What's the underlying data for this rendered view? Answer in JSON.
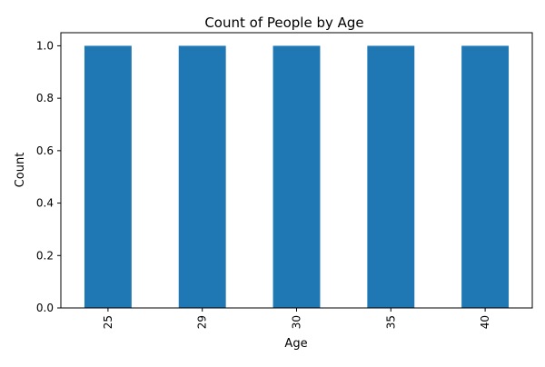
{
  "chart_data": {
    "type": "bar",
    "title": "Count of People by Age",
    "xlabel": "Age",
    "ylabel": "Count",
    "categories": [
      "25",
      "29",
      "30",
      "35",
      "40"
    ],
    "values": [
      1,
      1,
      1,
      1,
      1
    ],
    "ylim": [
      0,
      1.05
    ],
    "yticks": [
      "0.0",
      "0.2",
      "0.4",
      "0.6",
      "0.8",
      "1.0"
    ],
    "grid": false,
    "legend": "none",
    "bar_color": "#1f77b4"
  }
}
